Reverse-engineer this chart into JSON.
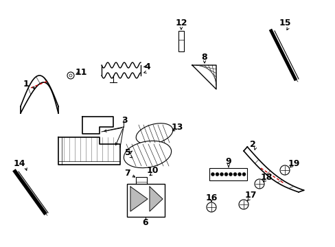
{
  "bg_color": "#ffffff",
  "line_color": "#000000",
  "red_line_color": "#cc0000",
  "font_size": 9,
  "font_weight": "bold"
}
